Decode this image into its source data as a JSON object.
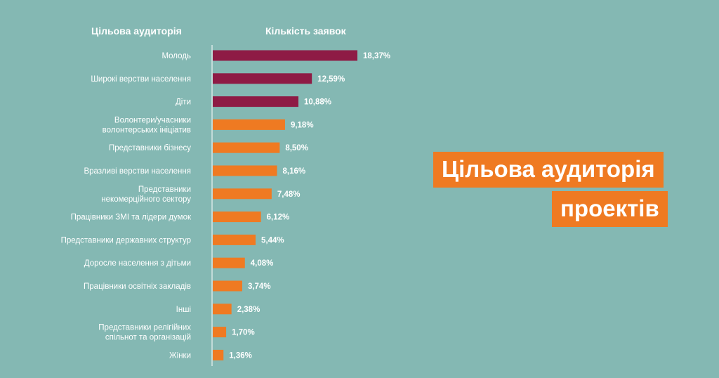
{
  "headers": {
    "category_column": "Цільова аудиторія",
    "value_column": "Кількість заявок"
  },
  "title": {
    "line1": "Цільова аудиторія",
    "line2": "проектів"
  },
  "colors": {
    "background": "#84b8b3",
    "highlight_bar": "#8e1b45",
    "regular_bar": "#ef7a22",
    "title_box": "#ef7a22",
    "text": "#ffffff"
  },
  "chart_data": {
    "type": "bar",
    "orientation": "horizontal",
    "title": "",
    "xlabel": "Кількість заявок",
    "ylabel": "Цільова аудиторія",
    "categories": [
      [
        "Молодь"
      ],
      [
        "Широкі верстви населення"
      ],
      [
        "Діти"
      ],
      [
        "Волонтери/учасники",
        "волонтерських ініціатив"
      ],
      [
        "Представники бізнесу"
      ],
      [
        "Вразливі верстви населення"
      ],
      [
        "Представники",
        "некомерційного сектору"
      ],
      [
        "Працівники ЗМІ та лідери думок"
      ],
      [
        "Представники державних структур"
      ],
      [
        "Доросле населення з дітьми"
      ],
      [
        "Працівники освітніх закладів"
      ],
      [
        "Інші"
      ],
      [
        "Представники релігійних",
        "спільнот та організацій"
      ],
      [
        "Жінки"
      ]
    ],
    "values": [
      18.37,
      12.59,
      10.88,
      9.18,
      8.5,
      8.16,
      7.48,
      6.12,
      5.44,
      4.08,
      3.74,
      2.38,
      1.7,
      1.36
    ],
    "value_labels": [
      "18,37%",
      "12,59%",
      "10,88%",
      "9,18%",
      "8,50%",
      "8,16%",
      "7,48%",
      "6,12%",
      "5,44%",
      "4,08%",
      "3,74%",
      "2,38%",
      "1,70%",
      "1,36%"
    ],
    "highlight_count": 3,
    "unit": "%",
    "grid": false,
    "legend": "none"
  }
}
